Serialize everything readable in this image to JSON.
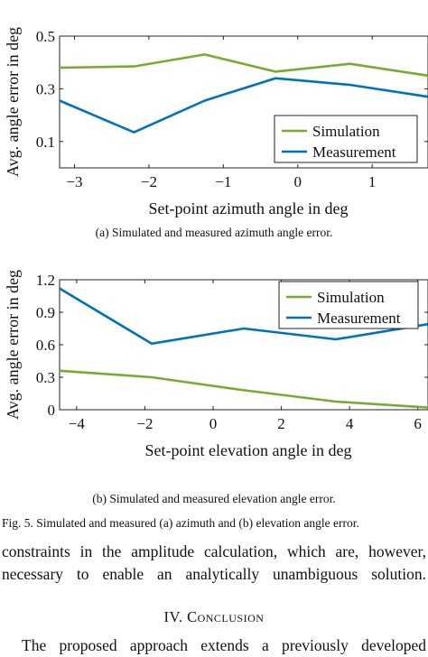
{
  "chart_data": [
    {
      "type": "line",
      "xlabel": "Set-point azimuth angle in deg",
      "ylabel": "Avg. angle error in deg",
      "xlim": [
        -3.2,
        1.75
      ],
      "ylim": [
        0.0,
        0.5
      ],
      "xticks": [
        -3,
        -2,
        -1,
        0,
        1
      ],
      "xtick_labels": [
        "−3",
        "−2",
        "−1",
        "0",
        "1"
      ],
      "yticks": [
        0.1,
        0.3,
        0.5
      ],
      "ytick_labels": [
        "0.1",
        "0.3",
        "0.5"
      ],
      "legend_position": "lower-right",
      "grid": false,
      "series": [
        {
          "name": "Simulation",
          "color": "#77ac30",
          "x": [
            -3.2,
            -2.2,
            -1.25,
            -0.3,
            0.7,
            1.75
          ],
          "y": [
            0.38,
            0.385,
            0.43,
            0.365,
            0.395,
            0.35
          ]
        },
        {
          "name": "Measurement",
          "color": "#0072bd",
          "x": [
            -3.2,
            -2.2,
            -1.25,
            -0.3,
            0.7,
            1.75
          ],
          "y": [
            0.255,
            0.135,
            0.255,
            0.34,
            0.315,
            0.27
          ]
        }
      ]
    },
    {
      "type": "line",
      "xlabel": "Set-point elevation angle in deg",
      "ylabel": "Avg. angle error in deg",
      "xlim": [
        -4.5,
        6.3
      ],
      "ylim": [
        0.0,
        1.2
      ],
      "xticks": [
        -4,
        -2,
        0,
        2,
        4,
        6
      ],
      "xtick_labels": [
        "−4",
        "−2",
        "0",
        "2",
        "4",
        "6"
      ],
      "yticks": [
        0,
        0.3,
        0.6,
        0.9,
        1.2
      ],
      "ytick_labels": [
        "0",
        "0.3",
        "0.6",
        "0.9",
        "1.2"
      ],
      "legend_position": "top-right",
      "grid": false,
      "series": [
        {
          "name": "Simulation",
          "color": "#77ac30",
          "x": [
            -4.5,
            -1.8,
            0.9,
            3.6,
            6.3
          ],
          "y": [
            0.36,
            0.3,
            0.18,
            0.075,
            0.02
          ]
        },
        {
          "name": "Measurement",
          "color": "#0072bd",
          "x": [
            -4.5,
            -1.8,
            0.9,
            3.6,
            6.3
          ],
          "y": [
            1.12,
            0.61,
            0.75,
            0.65,
            0.79
          ]
        }
      ]
    }
  ],
  "captions": {
    "sub_a": "(a) Simulated and measured azimuth angle error.",
    "sub_b": "(b) Simulated and measured elevation angle error.",
    "figure": "Fig. 5.   Simulated and measured (a) azimuth and (b) elevation angle error."
  },
  "text": {
    "line1": "constraints in the amplitude calculation, which are, however,",
    "line2": "necessary to enable an analytically unambiguous solution.",
    "section_number": "IV.",
    "section_title": "Conclusion",
    "line3": "The proposed approach extends a previously developed"
  }
}
